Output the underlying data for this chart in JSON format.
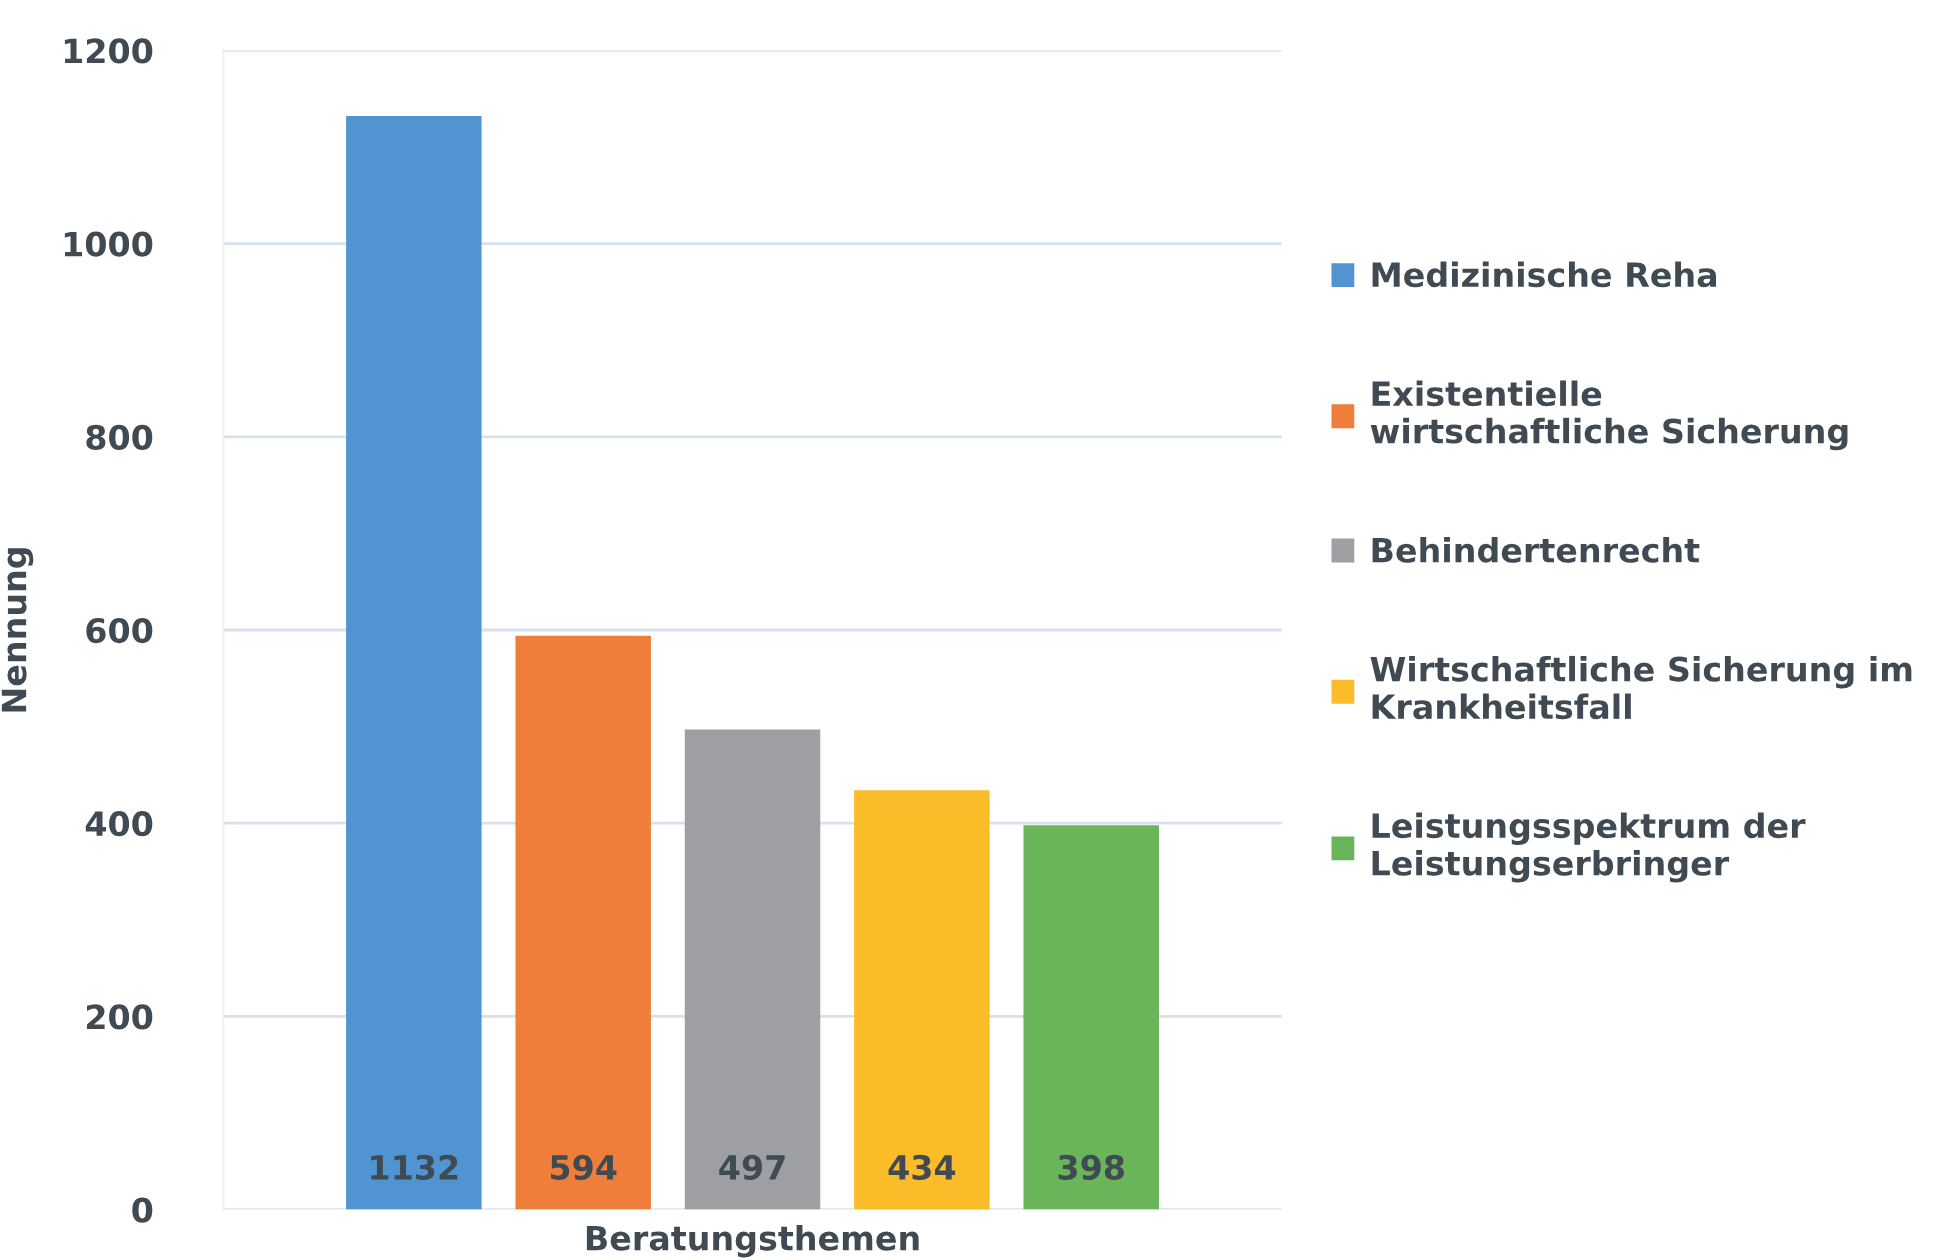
{
  "chart_data": {
    "type": "bar",
    "xlabel": "Beratungsthemen",
    "ylabel": "Nennung",
    "categories": [
      null
    ],
    "series": [
      {
        "name": "Medizinische Reha",
        "color": "#5095d1",
        "values": [
          1132
        ]
      },
      {
        "name": "Existentielle wirtschaftliche Sicherung",
        "color": "#ef7e3b",
        "values": [
          594
        ]
      },
      {
        "name": "Behindertenrecht",
        "color": "#9d9fa2",
        "values": [
          497
        ]
      },
      {
        "name": "Wirtschaftliche Sicherung im Krankheitsfall",
        "color": "#fbbc29",
        "values": [
          434
        ]
      },
      {
        "name": "Leistungsspektrum der Leistungserbringer",
        "color": "#6ab45a",
        "values": [
          398
        ]
      }
    ],
    "ylim": [
      0,
      1200
    ],
    "yticks": [
      0,
      200,
      400,
      600,
      800,
      1000,
      1200
    ],
    "grid": "y",
    "legend": "right",
    "data_labels": true
  }
}
